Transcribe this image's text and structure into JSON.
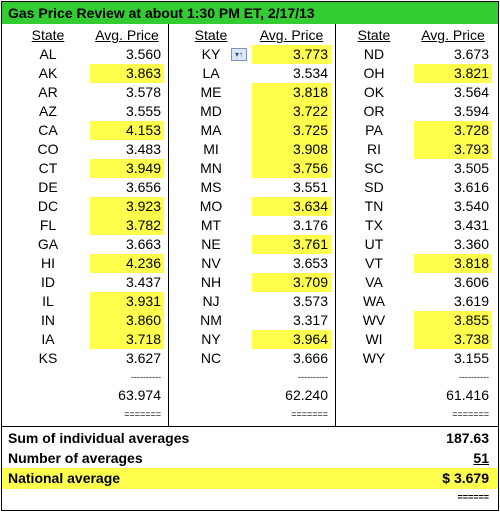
{
  "title": "Gas Price Review at about 1:30 PM ET, 2/17/13",
  "headers": [
    {
      "state": "State",
      "price": "Avg. Price"
    },
    {
      "state": "State",
      "price": "Avg. Price"
    },
    {
      "state": "State",
      "price": "Avg. Price"
    }
  ],
  "columns": [
    {
      "rows": [
        {
          "state": "AL",
          "price": "3.560"
        },
        {
          "state": "AK",
          "price": "3.863",
          "highlight": true
        },
        {
          "state": "AR",
          "price": "3.578"
        },
        {
          "state": "AZ",
          "price": "3.555"
        },
        {
          "state": "CA",
          "price": "4.153",
          "highlight": true
        },
        {
          "state": "CO",
          "price": "3.483"
        },
        {
          "state": "CT",
          "price": "3.949",
          "highlight": true
        },
        {
          "state": "DE",
          "price": "3.656"
        },
        {
          "state": "DC",
          "price": "3.923",
          "highlight": true
        },
        {
          "state": "FL",
          "price": "3.782",
          "highlight": true
        },
        {
          "state": "GA",
          "price": "3.663"
        },
        {
          "state": "HI",
          "price": "4.236",
          "highlight": true
        },
        {
          "state": "ID",
          "price": "3.437"
        },
        {
          "state": "IL",
          "price": "3.931",
          "highlight": true
        },
        {
          "state": "IN",
          "price": "3.860",
          "highlight": true
        },
        {
          "state": "IA",
          "price": "3.718",
          "highlight": true
        },
        {
          "state": "KS",
          "price": "3.627"
        }
      ],
      "dashes": "----------",
      "total": "63.974",
      "equals": "======="
    },
    {
      "rows": [
        {
          "state": "KY",
          "price": "3.773",
          "highlight": true
        },
        {
          "state": "LA",
          "price": "3.534"
        },
        {
          "state": "ME",
          "price": "3.818",
          "highlight": true
        },
        {
          "state": "MD",
          "price": "3.722",
          "highlight": true
        },
        {
          "state": "MA",
          "price": "3.725",
          "highlight": true
        },
        {
          "state": "MI",
          "price": "3.908",
          "highlight": true
        },
        {
          "state": "MN",
          "price": "3.756",
          "highlight": true
        },
        {
          "state": "MS",
          "price": "3.551"
        },
        {
          "state": "MO",
          "price": "3.634",
          "highlight": true
        },
        {
          "state": "MT",
          "price": "3.176"
        },
        {
          "state": "NE",
          "price": "3.761",
          "highlight": true
        },
        {
          "state": "NV",
          "price": "3.653"
        },
        {
          "state": "NH",
          "price": "3.709",
          "highlight": true
        },
        {
          "state": "NJ",
          "price": "3.573"
        },
        {
          "state": "NM",
          "price": "3.317"
        },
        {
          "state": "NY",
          "price": "3.964",
          "highlight": true
        },
        {
          "state": "NC",
          "price": "3.666"
        }
      ],
      "dashes": "----------",
      "total": "62.240",
      "equals": "======="
    },
    {
      "rows": [
        {
          "state": "ND",
          "price": "3.673"
        },
        {
          "state": "OH",
          "price": "3.821",
          "highlight": true
        },
        {
          "state": "OK",
          "price": "3.564"
        },
        {
          "state": "OR",
          "price": "3.594"
        },
        {
          "state": "PA",
          "price": "3.728",
          "highlight": true
        },
        {
          "state": "RI",
          "price": "3.793",
          "highlight": true
        },
        {
          "state": "SC",
          "price": "3.505"
        },
        {
          "state": "SD",
          "price": "3.616"
        },
        {
          "state": "TN",
          "price": "3.540"
        },
        {
          "state": "TX",
          "price": "3.431"
        },
        {
          "state": "UT",
          "price": "3.360"
        },
        {
          "state": "VT",
          "price": "3.818",
          "highlight": true
        },
        {
          "state": "VA",
          "price": "3.606"
        },
        {
          "state": "WA",
          "price": "3.619"
        },
        {
          "state": "WV",
          "price": "3.855",
          "highlight": true
        },
        {
          "state": "WI",
          "price": "3.738",
          "highlight": true
        },
        {
          "state": "WY",
          "price": "3.155"
        }
      ],
      "dashes": "----------",
      "total": "61.416",
      "equals": "======="
    }
  ],
  "summary": {
    "rows": [
      {
        "label": "Sum of individual averages",
        "value": "187.63"
      },
      {
        "label": "Number of averages",
        "value": "51",
        "underline": true
      },
      {
        "label": "National average",
        "value": "$ 3.679",
        "highlight": true
      }
    ],
    "equals": "======"
  }
}
